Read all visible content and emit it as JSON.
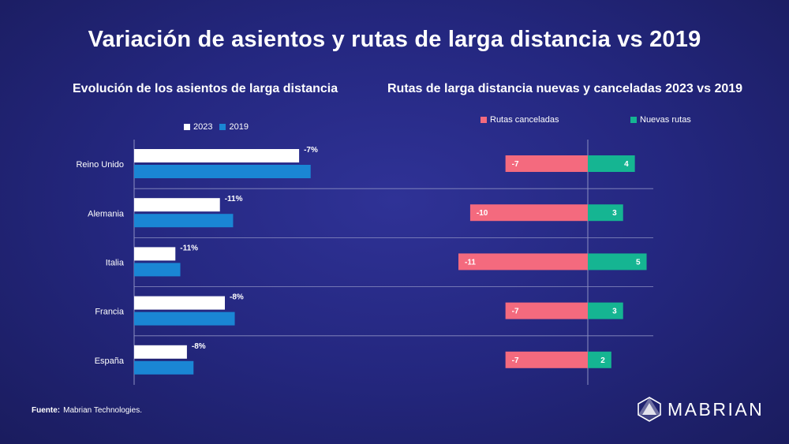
{
  "title": "Variación de asientos y rutas de larga distancia vs 2019",
  "colors": {
    "bar_2023": "#ffffff",
    "bar_2019": "#1a86d4",
    "cancelled": "#f46a7e",
    "new_routes": "#15b592",
    "grid": "#8c8fc2"
  },
  "chart_data": [
    {
      "type": "bar",
      "orientation": "horizontal",
      "title": "Evolución de los asientos de larga distancia",
      "categories": [
        "Reino Unido",
        "Alemania",
        "Italia",
        "Francia",
        "España"
      ],
      "series": [
        {
          "name": "2023",
          "values": [
            100,
            52,
            25,
            55,
            32
          ]
        },
        {
          "name": "2019",
          "values": [
            107,
            60,
            28,
            61,
            36
          ]
        }
      ],
      "data_labels": [
        "-7%",
        "-11%",
        "-11%",
        "-8%",
        "-8%"
      ],
      "value_unit": "relative seat volume (estimated, unlabeled axis)",
      "xlim": [
        0,
        110
      ],
      "legend": "top"
    },
    {
      "type": "bar",
      "orientation": "horizontal",
      "stacked": "diverging",
      "title": "Rutas de larga distancia nuevas y canceladas 2023 vs 2019",
      "categories": [
        "Reino Unido",
        "Alemania",
        "Italia",
        "Francia",
        "España"
      ],
      "series": [
        {
          "name": "Rutas canceladas",
          "values": [
            -7,
            -10,
            -11,
            -7,
            -7
          ]
        },
        {
          "name": "Nuevas rutas",
          "values": [
            4,
            3,
            5,
            3,
            2
          ]
        }
      ],
      "xlim": [
        -11,
        5
      ],
      "legend": "top"
    }
  ],
  "legend_left": {
    "a": "2023",
    "b": "2019"
  },
  "legend_right": {
    "a": "Rutas canceladas",
    "b": "Nuevas rutas"
  },
  "source": {
    "label": "Fuente:",
    "text": "Mabrian Technologies."
  },
  "logo": {
    "text": "MABRIAN"
  }
}
